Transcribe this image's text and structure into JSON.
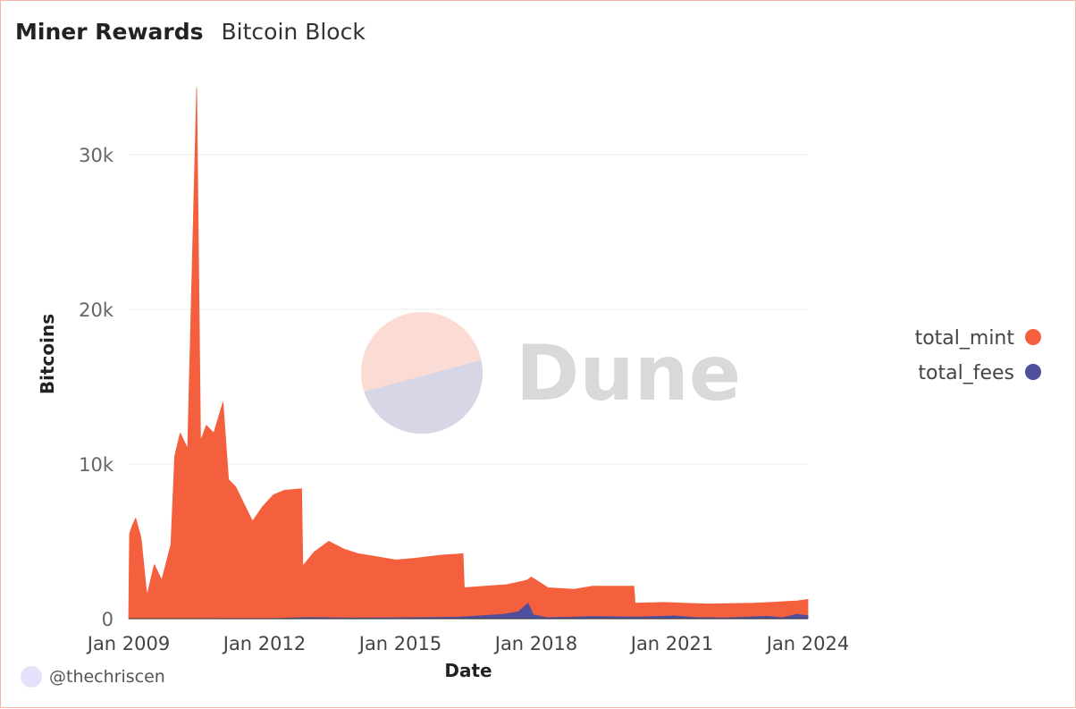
{
  "header": {
    "title": "Miner Rewards",
    "subtitle": "Bitcoin Block"
  },
  "author": {
    "handle": "@thechriscen",
    "avatar_icon": "avatar-circle-icon"
  },
  "watermark": {
    "text": "Dune",
    "logo_icon": "dune-logo-icon",
    "logo_colors": [
      "#fbdcd4",
      "#d7d6e6"
    ],
    "text_color": "#d9d9d9"
  },
  "chart_data": {
    "type": "area",
    "stacked": true,
    "title": "",
    "xlabel": "Date",
    "ylabel": "Bitcoins",
    "x_ticks": [
      "Jan 2009",
      "Jan 2012",
      "Jan 2015",
      "Jan 2018",
      "Jan 2021",
      "Jan 2024"
    ],
    "y_ticks": [
      "0",
      "10k",
      "20k",
      "30k"
    ],
    "y_tick_values": [
      0,
      10000,
      20000,
      30000
    ],
    "xlim": [
      "2009-01-03",
      "2024-03-31"
    ],
    "ylim": [
      0,
      33000
    ],
    "grid": true,
    "legend_position": "right",
    "legend": [
      {
        "name": "total_mint",
        "color": "#f4603e"
      },
      {
        "name": "total_fees",
        "color": "#4f4f9c"
      }
    ],
    "series": [
      {
        "name": "total_mint",
        "color": "#f4603e",
        "points": [
          [
            "2009-01-03",
            0
          ],
          [
            "2009-01-10",
            5500
          ],
          [
            "2009-02-01",
            6000
          ],
          [
            "2009-03-01",
            6500
          ],
          [
            "2009-04-15",
            5200
          ],
          [
            "2009-06-01",
            1500
          ],
          [
            "2009-08-01",
            3500
          ],
          [
            "2009-10-01",
            2500
          ],
          [
            "2009-12-15",
            4800
          ],
          [
            "2010-01-15",
            10500
          ],
          [
            "2010-03-01",
            12000
          ],
          [
            "2010-05-01",
            11000
          ],
          [
            "2010-07-14",
            34300
          ],
          [
            "2010-08-15",
            11500
          ],
          [
            "2010-10-01",
            12500
          ],
          [
            "2010-12-01",
            12000
          ],
          [
            "2011-02-15",
            14000
          ],
          [
            "2011-04-01",
            9000
          ],
          [
            "2011-06-01",
            8500
          ],
          [
            "2011-08-01",
            7500
          ],
          [
            "2011-10-15",
            6300
          ],
          [
            "2012-01-01",
            7200
          ],
          [
            "2012-04-01",
            8000
          ],
          [
            "2012-07-01",
            8300
          ],
          [
            "2012-11-20",
            8400
          ],
          [
            "2012-11-30",
            3400
          ],
          [
            "2013-03-01",
            4300
          ],
          [
            "2013-07-01",
            5000
          ],
          [
            "2013-11-01",
            4500
          ],
          [
            "2014-03-01",
            4200
          ],
          [
            "2014-08-01",
            4000
          ],
          [
            "2015-01-01",
            3800
          ],
          [
            "2015-06-01",
            3900
          ],
          [
            "2016-01-01",
            4100
          ],
          [
            "2016-07-05",
            4200
          ],
          [
            "2016-07-15",
            2000
          ],
          [
            "2017-01-01",
            2100
          ],
          [
            "2017-07-01",
            2200
          ],
          [
            "2017-12-15",
            2500
          ],
          [
            "2018-01-15",
            2700
          ],
          [
            "2018-06-01",
            2000
          ],
          [
            "2019-01-01",
            1900
          ],
          [
            "2019-06-01",
            2100
          ],
          [
            "2020-05-05",
            2100
          ],
          [
            "2020-05-15",
            1000
          ],
          [
            "2021-01-01",
            1050
          ],
          [
            "2022-01-01",
            950
          ],
          [
            "2023-01-01",
            1000
          ],
          [
            "2023-06-01",
            1050
          ],
          [
            "2024-01-01",
            1150
          ],
          [
            "2024-03-31",
            1250
          ]
        ]
      },
      {
        "name": "total_fees",
        "color": "#4f4f9c",
        "points": [
          [
            "2009-01-03",
            0
          ],
          [
            "2012-06-01",
            20
          ],
          [
            "2013-01-01",
            80
          ],
          [
            "2014-01-01",
            40
          ],
          [
            "2015-06-01",
            60
          ],
          [
            "2016-06-01",
            100
          ],
          [
            "2017-06-01",
            280
          ],
          [
            "2017-10-01",
            450
          ],
          [
            "2017-12-20",
            1000
          ],
          [
            "2018-02-01",
            250
          ],
          [
            "2018-06-01",
            60
          ],
          [
            "2019-06-01",
            140
          ],
          [
            "2020-06-01",
            110
          ],
          [
            "2021-04-01",
            180
          ],
          [
            "2021-10-01",
            70
          ],
          [
            "2022-06-01",
            50
          ],
          [
            "2023-05-01",
            160
          ],
          [
            "2023-09-01",
            60
          ],
          [
            "2024-01-01",
            280
          ],
          [
            "2024-03-31",
            200
          ]
        ]
      }
    ]
  }
}
